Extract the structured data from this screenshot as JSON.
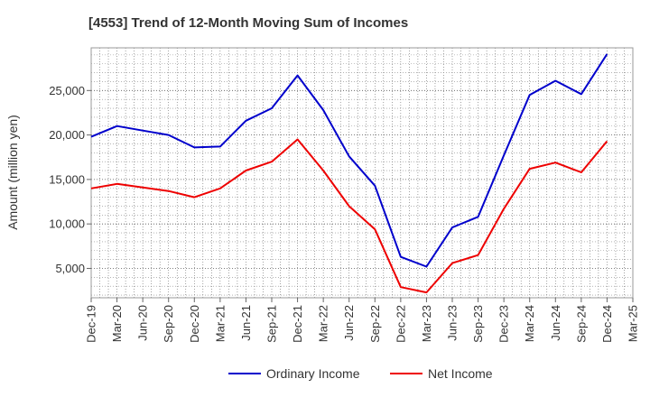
{
  "chart_data": {
    "type": "line",
    "title": "[4553]  Trend of 12-Month Moving Sum of Incomes",
    "ylabel": "Amount (million yen)",
    "xlabel": "",
    "categories": [
      "Dec-19",
      "Mar-20",
      "Jun-20",
      "Sep-20",
      "Dec-20",
      "Mar-21",
      "Jun-21",
      "Sep-21",
      "Dec-21",
      "Mar-22",
      "Jun-22",
      "Sep-22",
      "Dec-22",
      "Mar-23",
      "Jun-23",
      "Sep-23",
      "Dec-23",
      "Mar-24",
      "Jun-24",
      "Sep-24",
      "Dec-24",
      "Mar-25"
    ],
    "yticks": [
      5000,
      10000,
      15000,
      20000,
      25000
    ],
    "ytick_labels": [
      "5,000",
      "10,000",
      "15,000",
      "20,000",
      "25,000"
    ],
    "ylim": [
      1700,
      29800
    ],
    "grid": true,
    "legend_position": "bottom-center",
    "series": [
      {
        "name": "Ordinary Income",
        "color": "#0000cc",
        "values": [
          19800,
          21000,
          20500,
          20000,
          18600,
          18700,
          21600,
          23000,
          26700,
          22800,
          17600,
          14300,
          6300,
          5200,
          9600,
          10800,
          17700,
          24500,
          26100,
          24600,
          29100,
          null
        ]
      },
      {
        "name": "Net Income",
        "color": "#ee0000",
        "values": [
          14000,
          14500,
          14100,
          13700,
          13000,
          14000,
          16000,
          17000,
          19500,
          16000,
          12000,
          9400,
          2900,
          2300,
          5600,
          6500,
          11700,
          16200,
          16900,
          15800,
          19300,
          null
        ]
      }
    ]
  }
}
